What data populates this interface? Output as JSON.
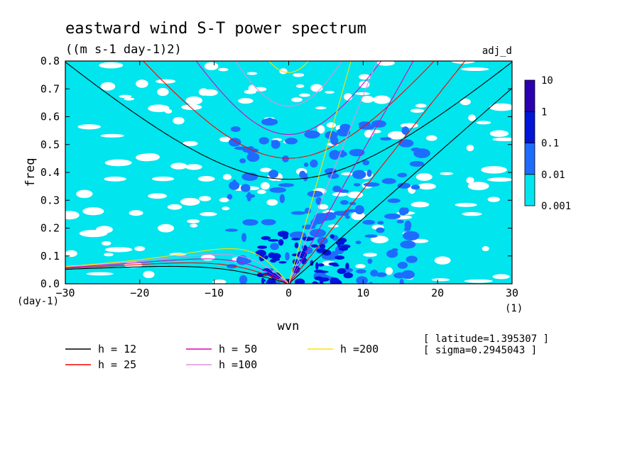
{
  "chart_data": {
    "type": "heatmap",
    "title": "eastward wind S-T power spectrum",
    "subtitle": "((m s-1 day-1)2)",
    "experiment": "adj_d",
    "xlabel": "wvn",
    "ylabel": "freq",
    "x_unit": "(1)",
    "y_unit": "(day-1)",
    "xlim": [
      -30,
      30
    ],
    "ylim": [
      0,
      0.8
    ],
    "xticks": [
      -30,
      -20,
      -10,
      0,
      10,
      20,
      30
    ],
    "yticks": [
      0.0,
      0.1,
      0.2,
      0.3,
      0.4,
      0.5,
      0.6,
      0.7,
      0.8
    ],
    "colorbar": {
      "levels": [
        "0.001",
        "0.01",
        "0.1",
        "1",
        "10"
      ],
      "colors": [
        "#00e5ee",
        "#1e6cff",
        "#0015d8",
        "#2a00b0"
      ]
    },
    "dispersion_curves": [
      {
        "label": "h = 12",
        "h": 12,
        "color": "#000000"
      },
      {
        "label": "h = 25",
        "h": 25,
        "color": "#ff0000"
      },
      {
        "label": "h = 50",
        "h": 50,
        "color": "#e000c0"
      },
      {
        "label": "h =100",
        "h": 100,
        "color": "#e090e0"
      },
      {
        "label": "h =200",
        "h": 200,
        "color": "#ffe000"
      }
    ],
    "annotations": [
      "[ latitude=1.395307 ]",
      "[ sigma=0.2945043 ]"
    ]
  }
}
